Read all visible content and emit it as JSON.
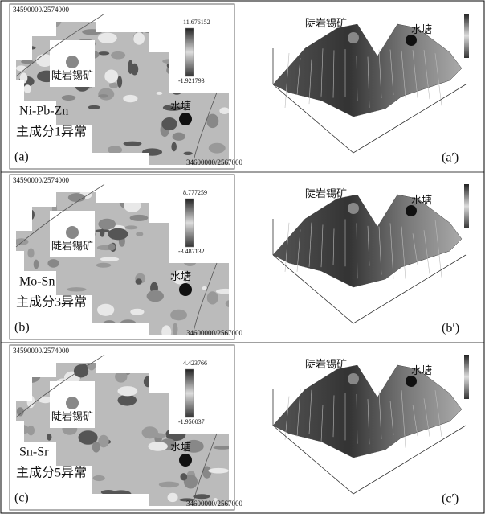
{
  "panels": [
    {
      "map": {
        "top_left": "34590000/2574000",
        "bottom_right": "34600000/2567000",
        "legend_max": "11.676152",
        "legend_min": "-1.921793",
        "mine": "陡岩锡矿",
        "pond": "水塘",
        "elements": "Ni-Pb-Zn",
        "component": "主成分1异常",
        "label": "(a)"
      },
      "view3d": {
        "mine": "陡岩锡矿",
        "pond": "水塘",
        "label": "(a′)"
      }
    },
    {
      "map": {
        "top_left": "34590000/2574000",
        "bottom_right": "34600000/2567000",
        "legend_max": "8.777259",
        "legend_min": "-3.487132",
        "mine": "陡岩锡矿",
        "pond": "水塘",
        "elements": "Mo-Sn",
        "component": "主成分3异常",
        "label": "(b)"
      },
      "view3d": {
        "mine": "陡岩锡矿",
        "pond": "水塘",
        "label": "(b′)"
      }
    },
    {
      "map": {
        "top_left": "34590000/2574000",
        "bottom_right": "34600000/2567000",
        "legend_max": "4.423766",
        "legend_min": "-1.950037",
        "mine": "陡岩锡矿",
        "pond": "水塘",
        "elements": "Sn-Sr",
        "component": "主成分5异常",
        "label": "(c)"
      },
      "view3d": {
        "mine": "陡岩锡矿",
        "pond": "水塘",
        "label": "(c′)"
      }
    }
  ]
}
